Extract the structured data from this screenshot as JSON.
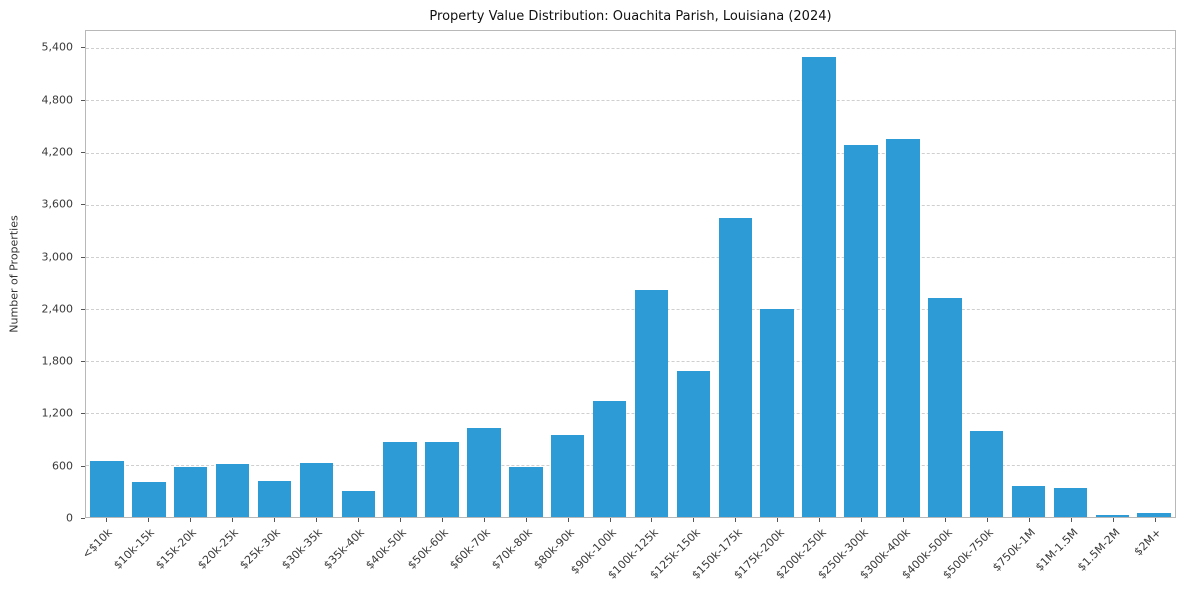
{
  "chart_data": {
    "type": "bar",
    "title": "Property Value Distribution: Ouachita Parish, Louisiana (2024)",
    "xlabel": "",
    "ylabel": "Number of Properties",
    "ylim": [
      0,
      5600
    ],
    "yticks": [
      0,
      600,
      1200,
      1800,
      2400,
      3000,
      3600,
      4200,
      4800,
      5400
    ],
    "grid": "horizontal-dashed",
    "legend": "none",
    "bar_color": "#2D9BD6",
    "categories": [
      "<$10k",
      "$10k-15k",
      "$15k-20k",
      "$20k-25k",
      "$25k-30k",
      "$30k-35k",
      "$35k-40k",
      "$40k-50k",
      "$50k-60k",
      "$60k-70k",
      "$70k-80k",
      "$80k-90k",
      "$90k-100k",
      "$100k-125k",
      "$125k-150k",
      "$150k-175k",
      "$175k-200k",
      "$200k-250k",
      "$250k-300k",
      "$300k-400k",
      "$400k-500k",
      "$500k-750k",
      "$750k-1M",
      "$1M-1.5M",
      "$1.5M-2M",
      "$2M+"
    ],
    "values": [
      650,
      400,
      580,
      610,
      420,
      620,
      300,
      870,
      860,
      1020,
      580,
      940,
      1340,
      2620,
      1680,
      3450,
      2400,
      5300,
      4290,
      4350,
      2520,
      990,
      360,
      330,
      20,
      45
    ]
  }
}
